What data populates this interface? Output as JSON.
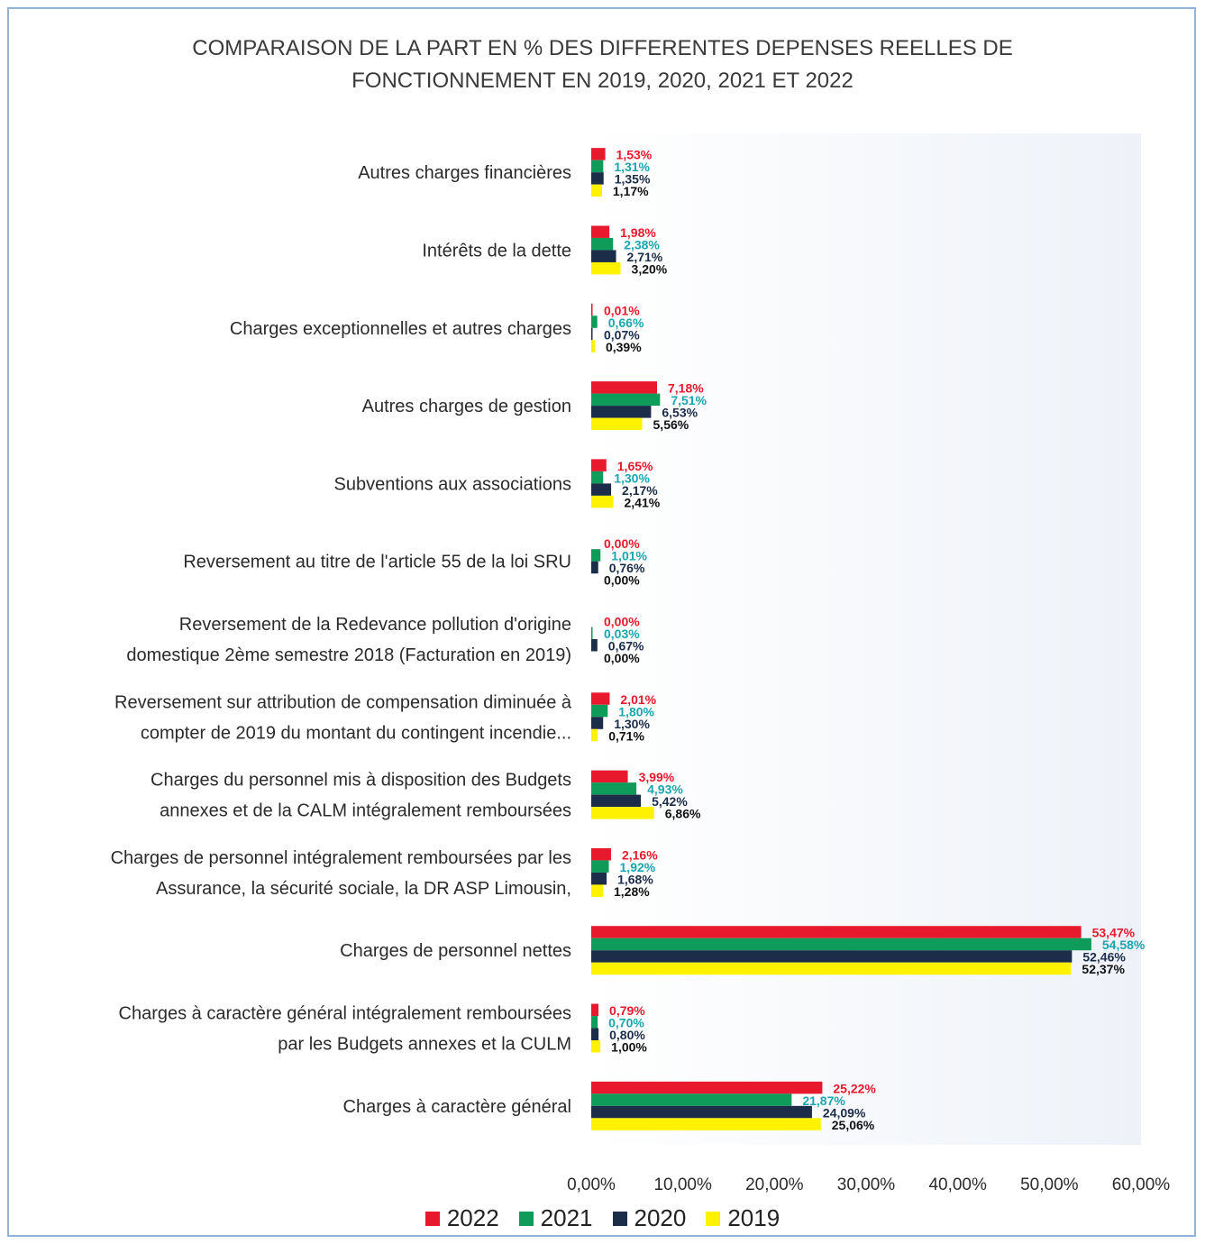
{
  "chart_data": {
    "type": "bar",
    "orientation": "horizontal",
    "title": "COMPARAISON DE LA PART EN % DES DIFFERENTES DEPENSES REELLES DE FONCTIONNEMENT EN 2019, 2020, 2021 ET 2022",
    "title_lines": [
      "COMPARAISON DE LA PART EN % DES DIFFERENTES DEPENSES REELLES DE",
      "FONCTIONNEMENT EN 2019, 2020, 2021 ET 2022"
    ],
    "categories": [
      [
        "Autres charges financières"
      ],
      [
        "Intérêts de la dette"
      ],
      [
        "Charges exceptionnelles et autres charges"
      ],
      [
        "Autres charges de gestion"
      ],
      [
        "Subventions aux associations"
      ],
      [
        "Reversement au titre de l'article 55 de la loi SRU"
      ],
      [
        "Reversement de la Redevance pollution d'origine",
        "domestique 2ème semestre 2018 (Facturation en 2019)"
      ],
      [
        "Reversement sur attribution de compensation diminuée à",
        "compter de 2019 du montant du contingent incendie..."
      ],
      [
        "Charges du personnel mis à disposition des Budgets",
        "annexes et de la CALM intégralement remboursées"
      ],
      [
        "Charges de personnel intégralement remboursées par les",
        "Assurance, la sécurité sociale, la DR ASP Limousin,"
      ],
      [
        "Charges de personnel nettes"
      ],
      [
        "Charges à caractère général intégralement remboursées",
        "par les Budgets annexes et la CULM"
      ],
      [
        "Charges à caractère général"
      ]
    ],
    "series": [
      {
        "name": "2022",
        "color": "#e8192c",
        "label_color": "#e8192c",
        "values": [
          1.53,
          1.98,
          0.01,
          7.18,
          1.65,
          0.0,
          0.0,
          2.01,
          3.99,
          2.16,
          53.47,
          0.79,
          25.22
        ],
        "labels": [
          "1,53%",
          "1,98%",
          "0,01%",
          "7,18%",
          "1,65%",
          "0,00%",
          "0,00%",
          "2,01%",
          "3,99%",
          "2,16%",
          "53,47%",
          "0,79%",
          "25,22%"
        ]
      },
      {
        "name": "2021",
        "color": "#0f9b5a",
        "label_color": "#1aa6b0",
        "values": [
          1.31,
          2.38,
          0.66,
          7.51,
          1.3,
          1.01,
          0.03,
          1.8,
          4.93,
          1.92,
          54.58,
          0.7,
          21.87
        ],
        "labels": [
          "1,31%",
          "2,38%",
          "0,66%",
          "7,51%",
          "1,30%",
          "1,01%",
          "0,03%",
          "1,80%",
          "4,93%",
          "1,92%",
          "54,58%",
          "0,70%",
          "21,87%"
        ]
      },
      {
        "name": "2020",
        "color": "#1c2d4a",
        "label_color": "#1c2d4a",
        "values": [
          1.35,
          2.71,
          0.07,
          6.53,
          2.17,
          0.76,
          0.67,
          1.3,
          5.42,
          1.68,
          52.46,
          0.8,
          24.09
        ],
        "labels": [
          "1,35%",
          "2,71%",
          "0,07%",
          "6,53%",
          "2,17%",
          "0,76%",
          "0,67%",
          "1,30%",
          "5,42%",
          "1,68%",
          "52,46%",
          "0,80%",
          "24,09%"
        ]
      },
      {
        "name": "2019",
        "color": "#fff200",
        "label_color": "#111111",
        "values": [
          1.17,
          3.2,
          0.39,
          5.56,
          2.41,
          0.0,
          0.0,
          0.71,
          6.86,
          1.28,
          52.37,
          1.0,
          25.06
        ],
        "labels": [
          "1,17%",
          "3,20%",
          "0,39%",
          "5,56%",
          "2,41%",
          "0,00%",
          "0,00%",
          "0,71%",
          "6,86%",
          "1,28%",
          "52,37%",
          "1,00%",
          "25,06%"
        ]
      }
    ],
    "x_ticks": [
      "0,00%",
      "10,00%",
      "20,00%",
      "30,00%",
      "40,00%",
      "50,00%",
      "60,00%"
    ],
    "xlim": [
      0,
      60
    ],
    "xlabel": "",
    "ylabel": "",
    "grid": false,
    "legend_position": "bottom"
  }
}
